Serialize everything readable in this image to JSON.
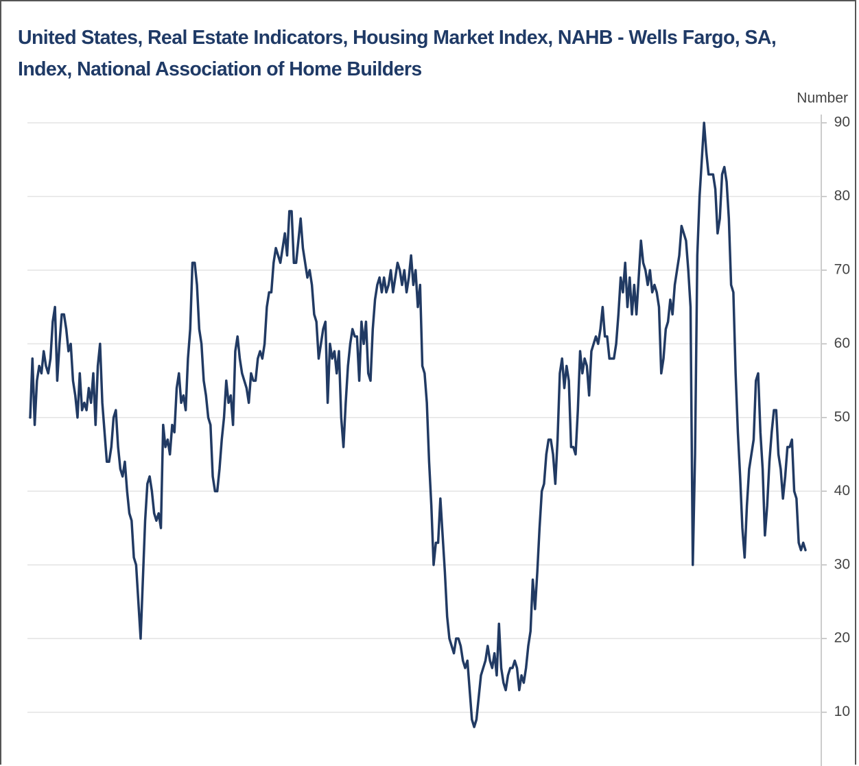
{
  "chart_data": {
    "type": "line",
    "title": "United States, Real Estate Indicators, Housing Market Index, NAHB - Wells Fargo, SA, Index, National Association of Home Builders",
    "y_axis_label": "Number",
    "series": [
      {
        "name": "Housing Market Index",
        "color": "#213a63",
        "values": [
          50,
          58,
          49,
          55,
          57,
          56,
          59,
          57,
          56,
          58,
          63,
          65,
          55,
          60,
          64,
          64,
          62,
          59,
          60,
          55,
          53,
          50,
          56,
          51,
          52,
          51,
          54,
          52,
          56,
          49,
          57,
          60,
          52,
          48,
          44,
          44,
          46,
          50,
          51,
          46,
          43,
          42,
          44,
          40,
          37,
          36,
          31,
          30,
          25,
          20,
          28,
          36,
          41,
          42,
          40,
          37,
          36,
          37,
          35,
          49,
          46,
          47,
          45,
          49,
          48,
          54,
          56,
          52,
          53,
          51,
          58,
          62,
          71,
          71,
          68,
          62,
          60,
          55,
          53,
          50,
          49,
          42,
          40,
          40,
          43,
          47,
          50,
          55,
          52,
          53,
          49,
          59,
          61,
          58,
          56,
          55,
          54,
          52,
          56,
          55,
          55,
          58,
          59,
          58,
          60,
          65,
          67,
          67,
          71,
          73,
          72,
          71,
          73,
          75,
          72,
          78,
          78,
          71,
          71,
          74,
          77,
          73,
          71,
          69,
          70,
          68,
          64,
          63,
          58,
          60,
          62,
          63,
          52,
          60,
          58,
          59,
          56,
          59,
          50,
          46,
          52,
          57,
          60,
          62,
          61,
          61,
          55,
          63,
          60,
          63,
          56,
          55,
          62,
          66,
          68,
          69,
          67,
          69,
          67,
          68,
          70,
          67,
          69,
          71,
          70,
          68,
          70,
          67,
          69,
          72,
          68,
          70,
          65,
          68,
          57,
          56,
          52,
          44,
          38,
          30,
          33,
          33,
          39,
          34,
          29,
          23,
          20,
          19,
          18,
          20,
          20,
          19,
          17,
          16,
          17,
          13,
          9,
          8,
          9,
          12,
          15,
          16,
          17,
          19,
          17,
          16,
          18,
          15,
          22,
          16,
          14,
          13,
          15,
          16,
          16,
          17,
          16,
          13,
          15,
          14,
          16,
          19,
          21,
          28,
          24,
          29,
          35,
          40,
          41,
          45,
          47,
          47,
          45,
          41,
          47,
          56,
          58,
          54,
          57,
          55,
          46,
          46,
          45,
          51,
          59,
          56,
          58,
          57,
          53,
          59,
          60,
          61,
          60,
          62,
          65,
          61,
          61,
          58,
          58,
          58,
          60,
          64,
          69,
          67,
          71,
          65,
          69,
          64,
          68,
          64,
          69,
          74,
          71,
          70,
          68,
          70,
          67,
          68,
          67,
          65,
          56,
          58,
          62,
          63,
          66,
          64,
          68,
          70,
          72,
          76,
          75,
          74,
          70,
          65,
          30,
          45,
          72,
          80,
          85,
          90,
          86,
          83,
          83,
          83,
          81,
          75,
          77,
          83,
          84,
          82,
          77,
          68,
          67,
          56,
          48,
          42,
          35,
          31,
          38,
          43,
          45,
          47,
          55,
          56,
          48,
          43,
          34,
          38,
          44,
          48,
          51,
          51,
          45,
          43,
          39,
          42,
          46,
          46,
          47,
          40,
          39,
          33,
          32,
          33,
          32
        ]
      }
    ],
    "ylim": [
      2.7,
      91.5
    ],
    "yticks": [
      10,
      20,
      30,
      40,
      50,
      60,
      70,
      80,
      90
    ],
    "grid": true
  }
}
